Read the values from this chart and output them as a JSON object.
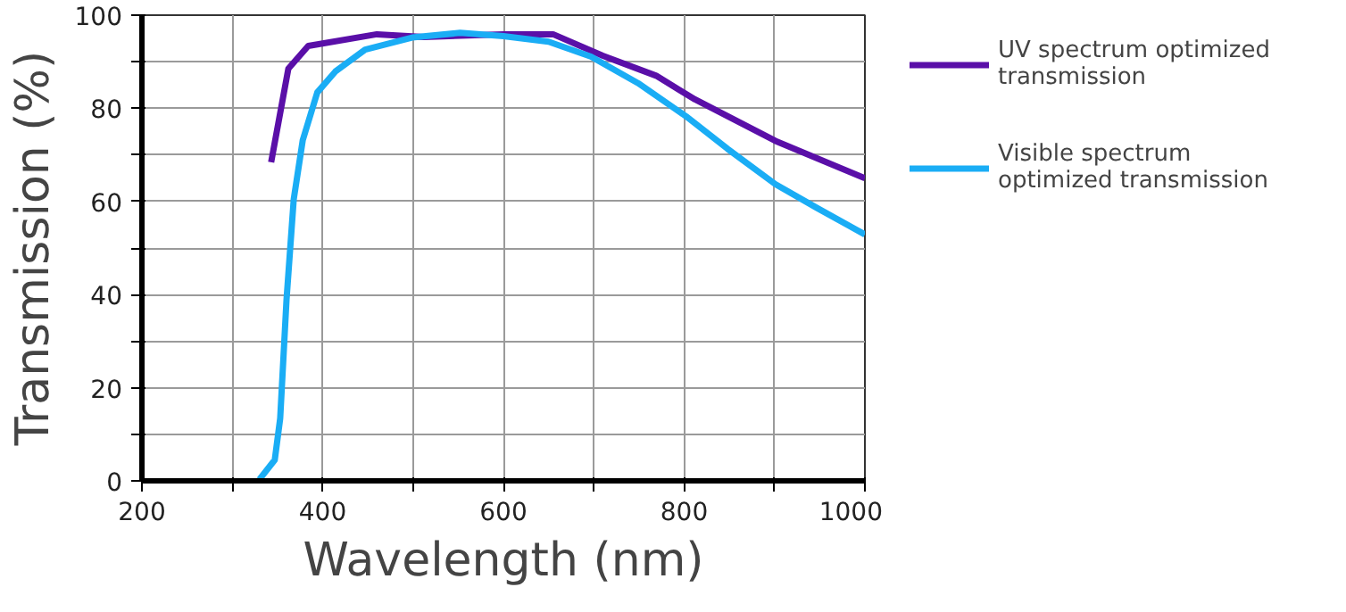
{
  "chart_data": {
    "type": "line",
    "xlabel": "Wavelength (nm)",
    "ylabel": "Transmission (%)",
    "xlim": [
      200,
      1000
    ],
    "ylim": [
      0,
      100
    ],
    "xticks": [
      200,
      {
        "value": 300,
        "label": null
      },
      400,
      {
        "value": 500,
        "label": null
      },
      600,
      {
        "value": 700,
        "label": null
      },
      800,
      {
        "value": 900,
        "label": null
      },
      1000
    ],
    "yticks": [
      0,
      {
        "value": 10,
        "label": null
      },
      20,
      {
        "value": 30,
        "label": null
      },
      40,
      {
        "value": 50,
        "label": null
      },
      60,
      {
        "value": 70,
        "label": null
      },
      80,
      {
        "value": 90,
        "label": null
      },
      100
    ],
    "grid": true,
    "legend": "right",
    "marker": "none",
    "line_style": "solid",
    "series": [
      {
        "name": "UV spectrum optimized transmission",
        "color": "#5a0fa8",
        "x": [
          343,
          362,
          384,
          460,
          512,
          600,
          655,
          710,
          769,
          812,
          901,
          1000
        ],
        "values": [
          68.4,
          88.5,
          93.4,
          95.9,
          95.3,
          95.9,
          95.9,
          91.3,
          87,
          81.9,
          73,
          65
        ]
      },
      {
        "name": "Visible spectrum optimized transmission",
        "color": "#1aadf5",
        "x": [
          330,
          347,
          353,
          360,
          368,
          378,
          394,
          414,
          447,
          499,
          552,
          600,
          650,
          697,
          749,
          802,
          848,
          901,
          947,
          1000
        ],
        "values": [
          0.3,
          4.5,
          13.4,
          38.9,
          60.5,
          73.2,
          83.4,
          87.9,
          92.6,
          95.2,
          96.2,
          95.5,
          94.3,
          91.1,
          85.4,
          78.3,
          71.3,
          63.7,
          58.6,
          52.9
        ]
      }
    ]
  }
}
